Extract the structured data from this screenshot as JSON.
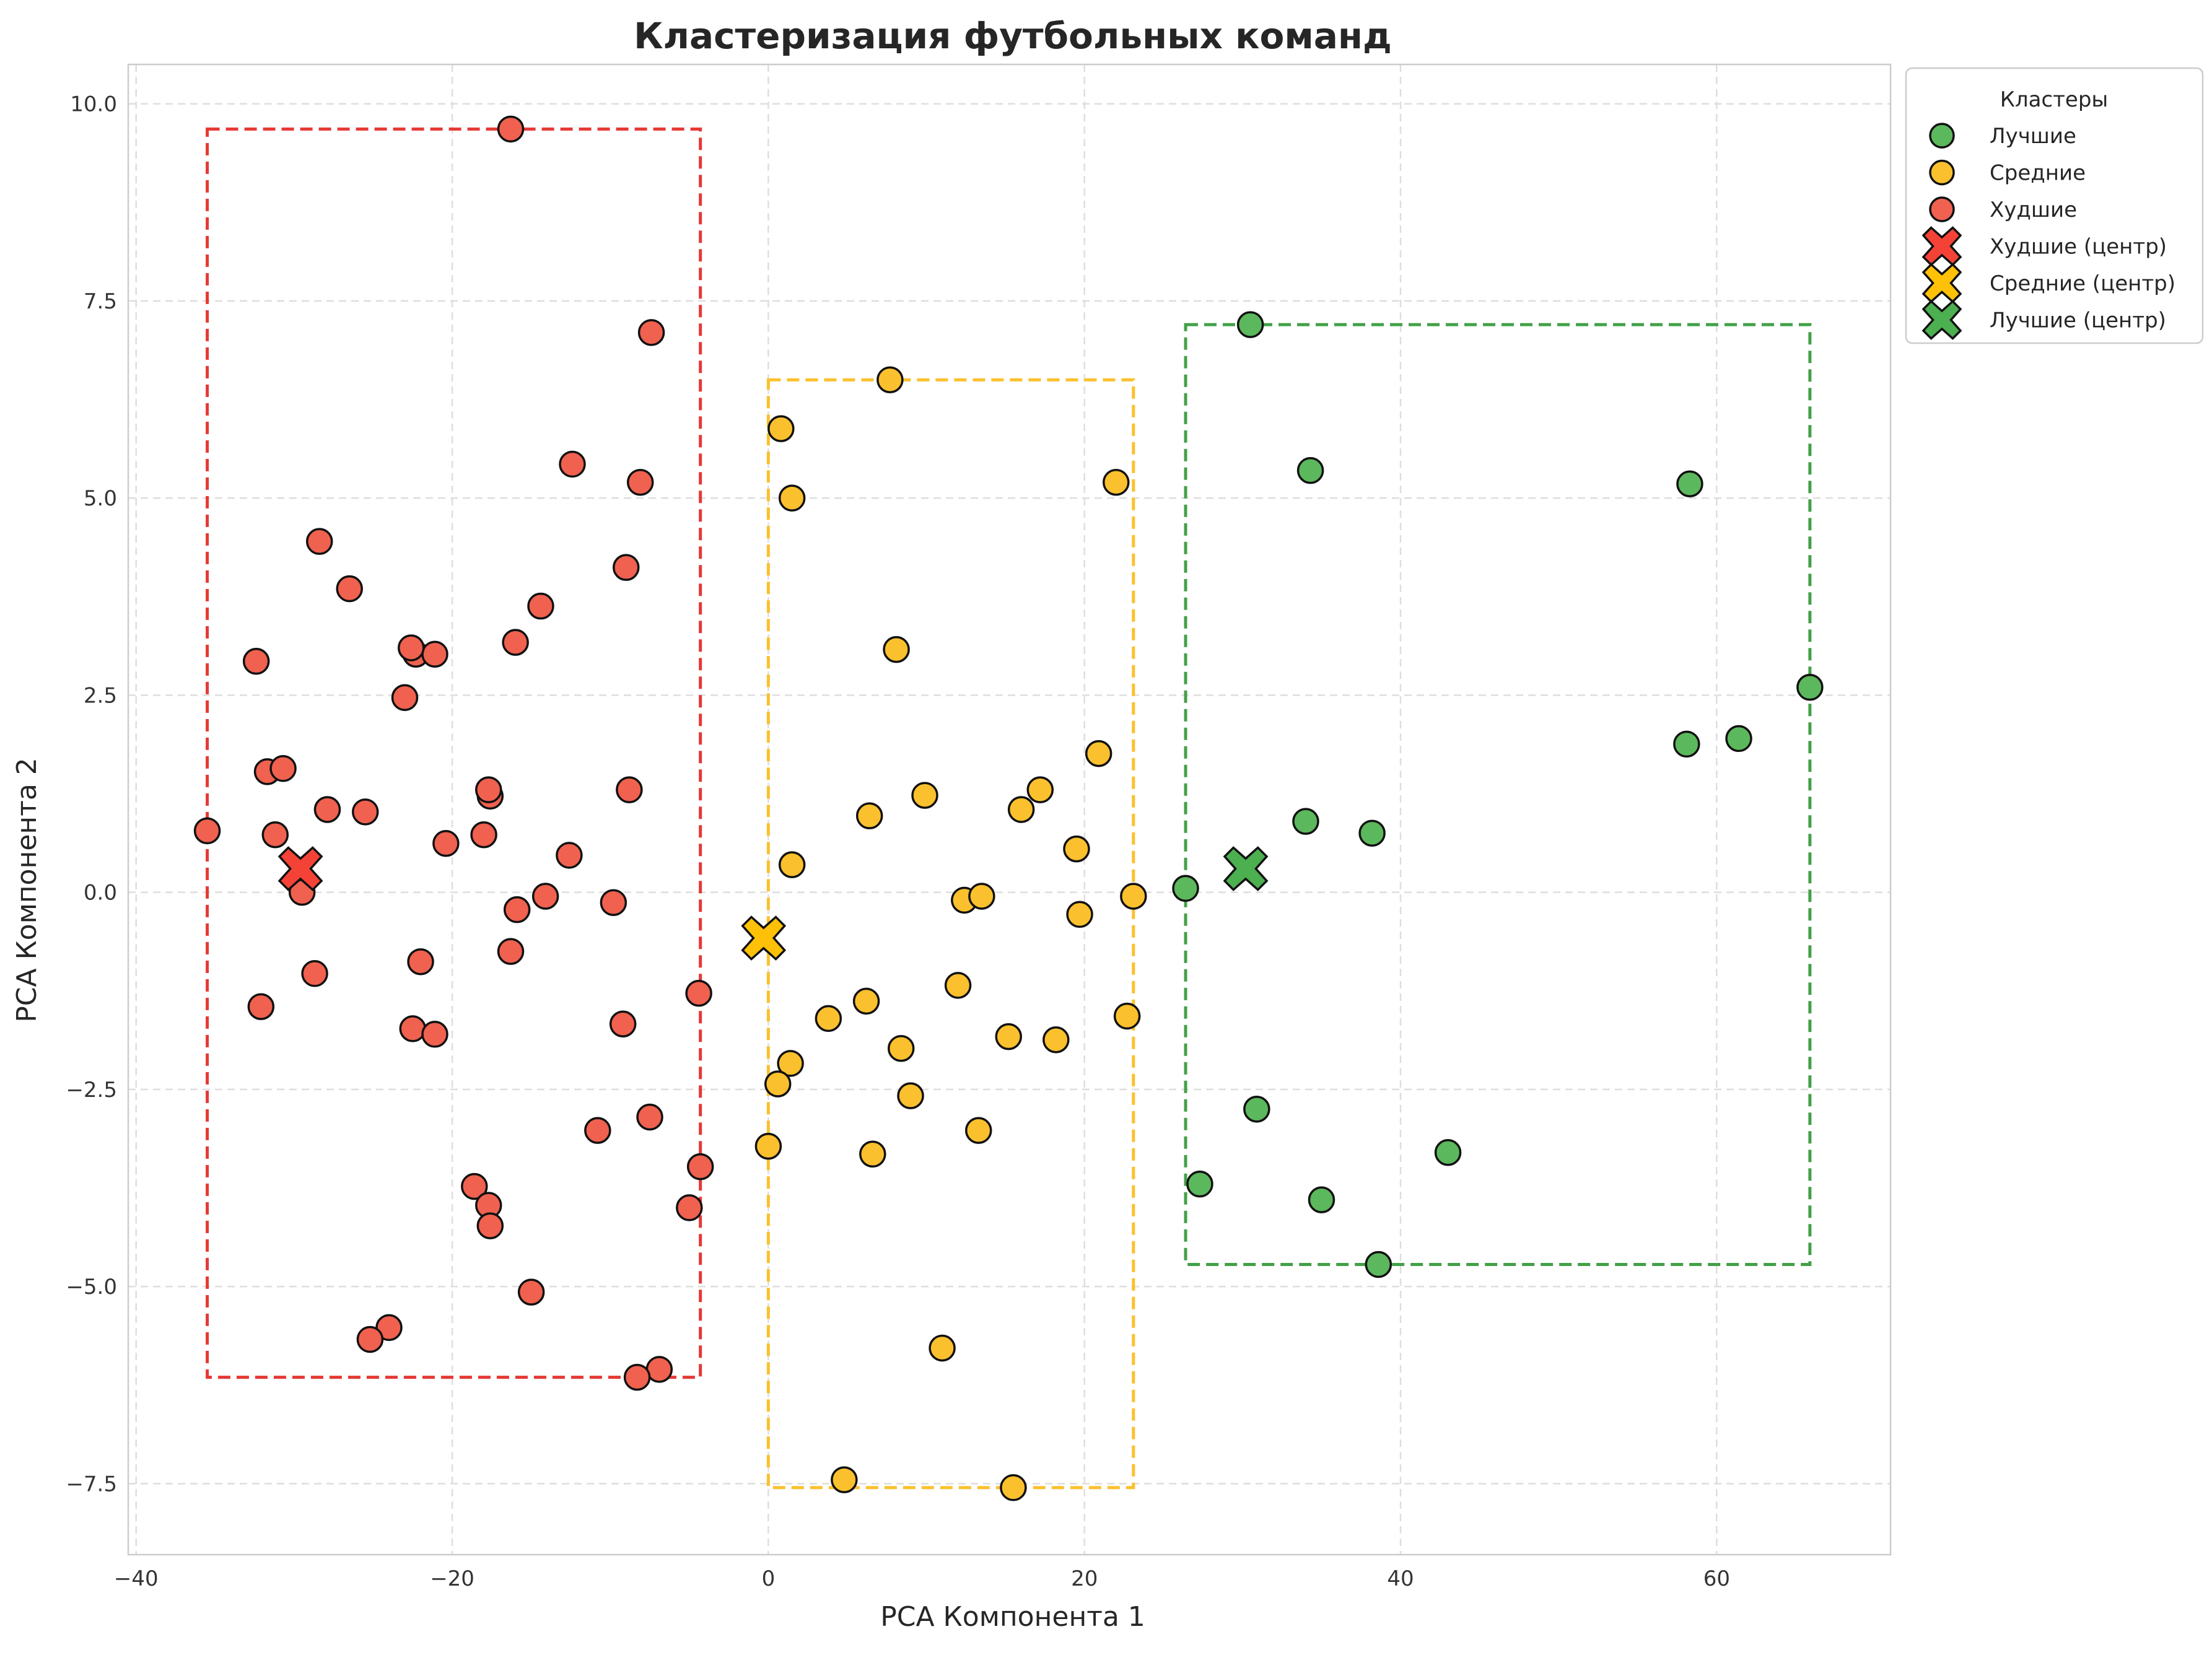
{
  "chart_data": {
    "type": "scatter",
    "title": "Кластеризация футбольных команд",
    "xlabel": "PCA Компонента 1",
    "ylabel": "PCA Компонента 2",
    "xlim": [
      -40.5,
      71
    ],
    "ylim": [
      -8.4,
      10.5
    ],
    "xticks": [
      -40,
      -20,
      0,
      20,
      40,
      60
    ],
    "xtick_labels": [
      "−40",
      "−20",
      "0",
      "20",
      "40",
      "60"
    ],
    "yticks": [
      -7.5,
      -5.0,
      -2.5,
      0.0,
      2.5,
      5.0,
      7.5,
      10.0
    ],
    "ytick_labels": [
      "−7.5",
      "−5.0",
      "−2.5",
      "0.0",
      "2.5",
      "5.0",
      "7.5",
      "10.0"
    ],
    "grid": true,
    "legend_title": "Кластеры",
    "legend_position": "outside-top-right",
    "series": [
      {
        "name": "Лучшие",
        "color": "#5cb85c",
        "points": [
          [
            30.5,
            7.2
          ],
          [
            34.3,
            5.35
          ],
          [
            58.3,
            5.18
          ],
          [
            65.9,
            2.6
          ],
          [
            61.4,
            1.95
          ],
          [
            58.1,
            1.88
          ],
          [
            34.0,
            0.9
          ],
          [
            38.2,
            0.75
          ],
          [
            26.4,
            0.05
          ],
          [
            30.9,
            -2.75
          ],
          [
            27.3,
            -3.7
          ],
          [
            43.0,
            -3.3
          ],
          [
            35.0,
            -3.9
          ],
          [
            38.6,
            -4.72
          ]
        ]
      },
      {
        "name": "Средние",
        "color": "#fbc02d",
        "points": [
          [
            7.7,
            6.5
          ],
          [
            0.8,
            5.88
          ],
          [
            1.5,
            5.0
          ],
          [
            22.0,
            5.2
          ],
          [
            8.1,
            3.08
          ],
          [
            20.9,
            1.76
          ],
          [
            17.2,
            1.3
          ],
          [
            9.9,
            1.23
          ],
          [
            16.0,
            1.05
          ],
          [
            6.4,
            0.97
          ],
          [
            19.5,
            0.55
          ],
          [
            1.5,
            0.35
          ],
          [
            12.4,
            -0.1
          ],
          [
            13.5,
            -0.05
          ],
          [
            23.1,
            -0.05
          ],
          [
            19.7,
            -0.28
          ],
          [
            12.0,
            -1.18
          ],
          [
            6.2,
            -1.38
          ],
          [
            3.8,
            -1.6
          ],
          [
            22.7,
            -1.57
          ],
          [
            15.2,
            -1.83
          ],
          [
            18.2,
            -1.87
          ],
          [
            8.4,
            -1.98
          ],
          [
            1.4,
            -2.17
          ],
          [
            0.6,
            -2.43
          ],
          [
            9.0,
            -2.58
          ],
          [
            13.3,
            -3.02
          ],
          [
            0.0,
            -3.22
          ],
          [
            6.6,
            -3.32
          ],
          [
            11.0,
            -5.78
          ],
          [
            4.8,
            -7.45
          ],
          [
            15.5,
            -7.55
          ]
        ]
      },
      {
        "name": "Худшие",
        "color": "#f0614f",
        "points": [
          [
            -16.3,
            9.68
          ],
          [
            -7.4,
            7.1
          ],
          [
            -12.4,
            5.43
          ],
          [
            -8.1,
            5.2
          ],
          [
            -28.4,
            4.45
          ],
          [
            -26.5,
            3.85
          ],
          [
            -9.0,
            4.12
          ],
          [
            -14.4,
            3.63
          ],
          [
            -16.0,
            3.17
          ],
          [
            -32.4,
            2.93
          ],
          [
            -22.3,
            3.02
          ],
          [
            -21.1,
            3.02
          ],
          [
            -22.6,
            3.1
          ],
          [
            -23.0,
            2.47
          ],
          [
            -31.7,
            1.53
          ],
          [
            -30.7,
            1.57
          ],
          [
            -27.9,
            1.05
          ],
          [
            -25.5,
            1.02
          ],
          [
            -17.6,
            1.22
          ],
          [
            -17.7,
            1.3
          ],
          [
            -8.8,
            1.3
          ],
          [
            -31.2,
            0.73
          ],
          [
            -35.5,
            0.78
          ],
          [
            -18.0,
            0.73
          ],
          [
            -20.4,
            0.62
          ],
          [
            -12.6,
            0.47
          ],
          [
            -29.5,
            0.0
          ],
          [
            -14.1,
            -0.05
          ],
          [
            -9.8,
            -0.13
          ],
          [
            -15.9,
            -0.22
          ],
          [
            -16.3,
            -0.75
          ],
          [
            -22.0,
            -0.88
          ],
          [
            -28.7,
            -1.03
          ],
          [
            -32.1,
            -1.45
          ],
          [
            -22.5,
            -1.73
          ],
          [
            -21.1,
            -1.8
          ],
          [
            -9.2,
            -1.67
          ],
          [
            -4.4,
            -1.28
          ],
          [
            -7.5,
            -2.85
          ],
          [
            -10.8,
            -3.02
          ],
          [
            -4.3,
            -3.48
          ],
          [
            -18.6,
            -3.73
          ],
          [
            -17.7,
            -3.97
          ],
          [
            -17.6,
            -4.23
          ],
          [
            -5.0,
            -4.0
          ],
          [
            -15.0,
            -5.07
          ],
          [
            -24.0,
            -5.52
          ],
          [
            -25.2,
            -5.67
          ],
          [
            -6.9,
            -6.05
          ],
          [
            -8.3,
            -6.15
          ]
        ]
      }
    ],
    "centroids": [
      {
        "name": "Худшие (центр)",
        "color": "#f44336",
        "x": -29.6,
        "y": 0.3
      },
      {
        "name": "Средние (центр)",
        "color": "#ffc107",
        "x": -0.3,
        "y": -0.58
      },
      {
        "name": "Лучшие (центр)",
        "color": "#4caf50",
        "x": 30.2,
        "y": 0.3
      }
    ],
    "boxes": [
      {
        "cluster": "Худшие",
        "color": "#e53935",
        "x": [
          -35.5,
          -4.3
        ],
        "y": [
          -6.15,
          9.68
        ]
      },
      {
        "cluster": "Средние",
        "color": "#fbc02d",
        "x": [
          0.0,
          23.1
        ],
        "y": [
          -7.55,
          6.5
        ]
      },
      {
        "cluster": "Лучшие",
        "color": "#43a047",
        "x": [
          26.4,
          65.9
        ],
        "y": [
          -4.72,
          7.2
        ]
      }
    ]
  }
}
